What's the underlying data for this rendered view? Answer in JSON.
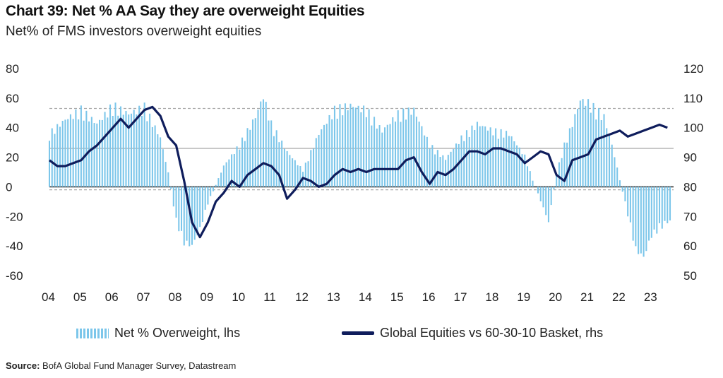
{
  "chart_data": {
    "type": "bar+line",
    "title": "Chart 39: Net % AA Say they are overweight Equities",
    "subtitle": "Net% of FMS investors overweight equities",
    "x_tick_labels": [
      "04",
      "05",
      "06",
      "07",
      "08",
      "09",
      "10",
      "11",
      "12",
      "13",
      "14",
      "15",
      "16",
      "17",
      "18",
      "19",
      "20",
      "21",
      "22",
      "23"
    ],
    "y_left": {
      "ticks": [
        80,
        60,
        40,
        20,
        0,
        -20,
        -40,
        -60
      ],
      "ylim": [
        -60,
        80
      ]
    },
    "y_right": {
      "ticks": [
        120,
        110,
        100,
        90,
        80,
        70,
        60,
        50
      ],
      "ylim": [
        50,
        120
      ]
    },
    "reference_lines_lhs": [
      {
        "value": 53,
        "style": "dashed"
      },
      {
        "value": 26,
        "style": "solid"
      },
      {
        "value": 0,
        "style": "solid"
      },
      {
        "value": -2,
        "style": "dashed"
      }
    ],
    "series": [
      {
        "name": "Net % Overweight, lhs",
        "type": "bar",
        "axis": "left",
        "color": "#7cc6ea",
        "x": [
          2004.0,
          2004.5,
          2005.0,
          2005.5,
          2006.0,
          2006.5,
          2007.0,
          2007.5,
          2007.75,
          2008.0,
          2008.25,
          2008.5,
          2008.75,
          2009.0,
          2009.5,
          2010.0,
          2010.5,
          2010.75,
          2011.0,
          2011.5,
          2012.0,
          2012.5,
          2013.0,
          2013.5,
          2014.0,
          2014.5,
          2015.0,
          2015.5,
          2016.0,
          2016.5,
          2017.0,
          2017.5,
          2018.0,
          2018.5,
          2019.0,
          2019.25,
          2019.5,
          2019.75,
          2020.0,
          2020.25,
          2020.5,
          2020.75,
          2021.0,
          2021.25,
          2021.5,
          2021.75,
          2022.0,
          2022.25,
          2022.5,
          2022.75,
          2023.0,
          2023.25,
          2023.5
        ],
        "values": [
          38,
          48,
          55,
          45,
          58,
          52,
          57,
          35,
          10,
          -25,
          -40,
          -42,
          -30,
          -12,
          15,
          30,
          50,
          65,
          45,
          25,
          12,
          38,
          55,
          58,
          55,
          40,
          52,
          55,
          30,
          20,
          35,
          45,
          40,
          38,
          22,
          5,
          -10,
          -25,
          10,
          30,
          45,
          62,
          60,
          55,
          50,
          30,
          5,
          -20,
          -45,
          -50,
          -35,
          -30,
          -25
        ]
      },
      {
        "name": "Global Equities vs 60-30-10 Basket, rhs",
        "type": "line",
        "axis": "right",
        "color": "#0f1d5c",
        "x": [
          2004.0,
          2004.25,
          2004.5,
          2004.75,
          2005.0,
          2005.25,
          2005.5,
          2005.75,
          2006.0,
          2006.25,
          2006.5,
          2006.75,
          2007.0,
          2007.25,
          2007.5,
          2007.75,
          2008.0,
          2008.25,
          2008.5,
          2008.75,
          2009.0,
          2009.25,
          2009.5,
          2009.75,
          2010.0,
          2010.25,
          2010.5,
          2010.75,
          2011.0,
          2011.25,
          2011.5,
          2011.75,
          2012.0,
          2012.25,
          2012.5,
          2012.75,
          2013.0,
          2013.25,
          2013.5,
          2013.75,
          2014.0,
          2014.25,
          2014.5,
          2014.75,
          2015.0,
          2015.25,
          2015.5,
          2015.75,
          2016.0,
          2016.25,
          2016.5,
          2016.75,
          2017.0,
          2017.25,
          2017.5,
          2017.75,
          2018.0,
          2018.25,
          2018.5,
          2018.75,
          2019.0,
          2019.25,
          2019.5,
          2019.75,
          2020.0,
          2020.25,
          2020.5,
          2020.75,
          2021.0,
          2021.25,
          2021.5,
          2021.75,
          2022.0,
          2022.25,
          2022.5,
          2022.75,
          2023.0,
          2023.25,
          2023.5
        ],
        "values": [
          89,
          87,
          87,
          88,
          89,
          92,
          94,
          97,
          100,
          103,
          100,
          103,
          106,
          107,
          104,
          97,
          94,
          82,
          68,
          63,
          68,
          75,
          78,
          82,
          80,
          84,
          86,
          88,
          87,
          84,
          76,
          79,
          83,
          82,
          80,
          81,
          84,
          86,
          85,
          86,
          85,
          86,
          86,
          86,
          86,
          89,
          90,
          85,
          81,
          85,
          84,
          86,
          89,
          92,
          92,
          91,
          93,
          93,
          92,
          91,
          88,
          90,
          92,
          91,
          84,
          82,
          89,
          90,
          91,
          96,
          97,
          98,
          99,
          97,
          98,
          99,
          100,
          101,
          100
        ]
      }
    ]
  },
  "legend": {
    "bars": "Net % Overweight, lhs",
    "line": "Global Equities vs 60-30-10 Basket, rhs"
  },
  "source": {
    "label": "Source:",
    "text": "BofA Global Fund Manager Survey, Datastream"
  }
}
